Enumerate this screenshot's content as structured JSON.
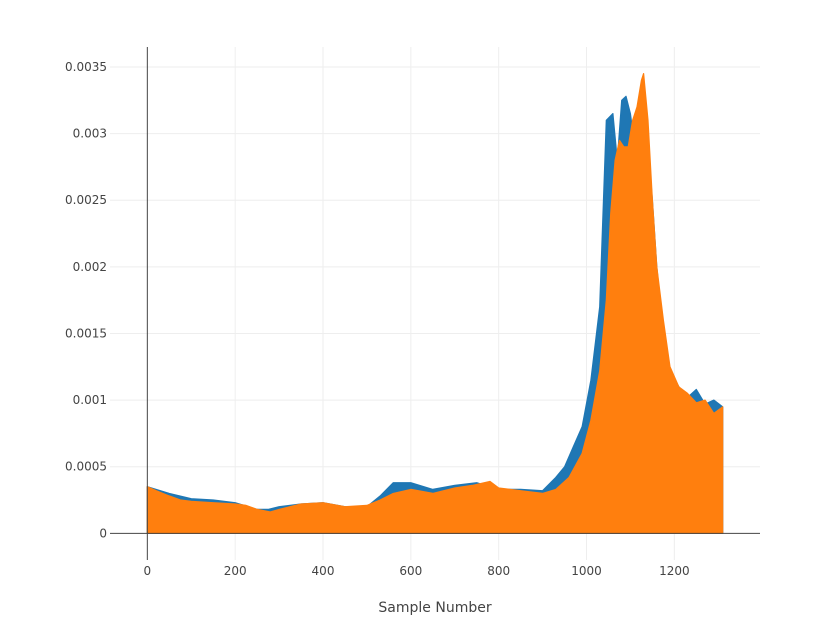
{
  "chart_data": {
    "type": "area",
    "title": "",
    "xlabel": "Sample Number",
    "ylabel": "",
    "xlim": [
      -85,
      1395
    ],
    "ylim": [
      -0.0002,
      0.00365
    ],
    "x_ticks": [
      0,
      200,
      400,
      600,
      800,
      1000,
      1200
    ],
    "x_tick_labels": [
      "0",
      "200",
      "400",
      "600",
      "800",
      "1000",
      "1200"
    ],
    "y_ticks": [
      0,
      0.0005,
      0.001,
      0.0015,
      0.002,
      0.0025,
      0.003,
      0.0035
    ],
    "y_tick_labels": [
      "0",
      "0.0005",
      "0.001",
      "0.0015",
      "0.002",
      "0.0025",
      "0.003",
      "0.0035"
    ],
    "grid": true,
    "legend": "none",
    "series": [
      {
        "color": "#1f77b4",
        "x": [
          0,
          50,
          100,
          150,
          200,
          250,
          275,
          300,
          350,
          400,
          450,
          500,
          530,
          560,
          600,
          650,
          700,
          750,
          800,
          850,
          900,
          930,
          950,
          970,
          990,
          1010,
          1030,
          1045,
          1060,
          1070,
          1080,
          1090,
          1100,
          1110,
          1115,
          1120,
          1125,
          1130,
          1140,
          1150,
          1160,
          1175,
          1190,
          1210,
          1230,
          1250,
          1270,
          1290,
          1310
        ],
        "y": [
          0.00035,
          0.0003,
          0.00026,
          0.00025,
          0.00023,
          0.00018,
          0.00018,
          0.0002,
          0.00022,
          0.00023,
          0.0002,
          0.0002,
          0.00028,
          0.00038,
          0.00038,
          0.00033,
          0.00036,
          0.00038,
          0.00033,
          0.00033,
          0.00032,
          0.00042,
          0.0005,
          0.00065,
          0.0008,
          0.00115,
          0.0017,
          0.0031,
          0.00315,
          0.0028,
          0.00325,
          0.00328,
          0.00315,
          0.0029,
          0.0026,
          0.0027,
          0.0032,
          0.0034,
          0.0029,
          0.0025,
          0.002,
          0.0015,
          0.00122,
          0.0011,
          0.00102,
          0.00108,
          0.00097,
          0.001,
          0.00095
        ]
      },
      {
        "color": "#ff7f0e",
        "x": [
          0,
          20,
          50,
          75,
          100,
          150,
          200,
          225,
          250,
          280,
          300,
          350,
          400,
          450,
          500,
          530,
          560,
          600,
          650,
          700,
          740,
          780,
          800,
          850,
          900,
          930,
          960,
          990,
          1010,
          1030,
          1045,
          1055,
          1065,
          1075,
          1085,
          1095,
          1105,
          1115,
          1125,
          1130,
          1140,
          1150,
          1160,
          1175,
          1190,
          1210,
          1230,
          1250,
          1270,
          1290,
          1310
        ],
        "y": [
          0.00035,
          0.00032,
          0.00028,
          0.00025,
          0.00024,
          0.00023,
          0.00022,
          0.00021,
          0.00018,
          0.00016,
          0.00018,
          0.00022,
          0.00023,
          0.0002,
          0.00021,
          0.00025,
          0.0003,
          0.00033,
          0.0003,
          0.00034,
          0.00036,
          0.00039,
          0.00034,
          0.00032,
          0.0003,
          0.00033,
          0.00042,
          0.0006,
          0.00085,
          0.00122,
          0.00175,
          0.0024,
          0.0028,
          0.00295,
          0.0029,
          0.0029,
          0.0031,
          0.0032,
          0.0034,
          0.00345,
          0.0031,
          0.0025,
          0.002,
          0.0016,
          0.00125,
          0.0011,
          0.00105,
          0.00098,
          0.001,
          0.0009,
          0.00095
        ]
      }
    ]
  }
}
